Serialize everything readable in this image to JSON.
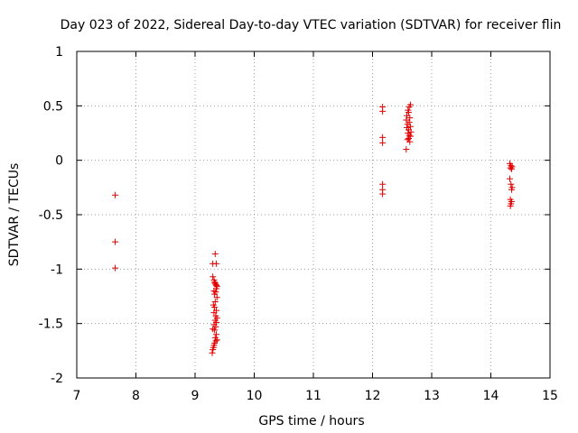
{
  "chart_data": {
    "type": "scatter",
    "title": "Day 023 of 2022, Sidereal Day-to-day VTEC variation (SDTVAR) for receiver flin",
    "xlabel": "GPS time / hours",
    "ylabel": "SDTVAR / TECUs",
    "xlim": [
      7,
      15
    ],
    "ylim": [
      -2,
      1
    ],
    "xticks": [
      "7",
      "8",
      "9",
      "10",
      "11",
      "12",
      "13",
      "14",
      "15"
    ],
    "yticks": [
      "1",
      "0.5",
      "0",
      "-0.5",
      "-1",
      "-1.5",
      "-2"
    ],
    "grid": true,
    "marker": "+",
    "color": "#e00000",
    "points": [
      [
        7.65,
        -0.32
      ],
      [
        7.65,
        -0.75
      ],
      [
        7.65,
        -0.99
      ],
      [
        9.34,
        -0.86
      ],
      [
        9.36,
        -0.95
      ],
      [
        9.3,
        -0.95
      ],
      [
        9.3,
        -1.07
      ],
      [
        9.32,
        -1.1
      ],
      [
        9.33,
        -1.12
      ],
      [
        9.34,
        -1.13
      ],
      [
        9.35,
        -1.14
      ],
      [
        9.36,
        -1.15
      ],
      [
        9.37,
        -1.16
      ],
      [
        9.36,
        -1.18
      ],
      [
        9.32,
        -1.2
      ],
      [
        9.35,
        -1.21
      ],
      [
        9.33,
        -1.23
      ],
      [
        9.37,
        -1.26
      ],
      [
        9.34,
        -1.3
      ],
      [
        9.31,
        -1.33
      ],
      [
        9.33,
        -1.35
      ],
      [
        9.36,
        -1.38
      ],
      [
        9.32,
        -1.4
      ],
      [
        9.35,
        -1.43
      ],
      [
        9.37,
        -1.45
      ],
      [
        9.34,
        -1.47
      ],
      [
        9.36,
        -1.49
      ],
      [
        9.32,
        -1.51
      ],
      [
        9.35,
        -1.53
      ],
      [
        9.3,
        -1.55
      ],
      [
        9.33,
        -1.56
      ],
      [
        9.36,
        -1.6
      ],
      [
        9.34,
        -1.63
      ],
      [
        9.37,
        -1.65
      ],
      [
        9.35,
        -1.66
      ],
      [
        9.33,
        -1.68
      ],
      [
        9.32,
        -1.7
      ],
      [
        9.31,
        -1.72
      ],
      [
        9.3,
        -1.74
      ],
      [
        9.29,
        -1.77
      ],
      [
        12.17,
        0.49
      ],
      [
        12.17,
        0.45
      ],
      [
        12.17,
        0.21
      ],
      [
        12.17,
        0.16
      ],
      [
        12.17,
        -0.22
      ],
      [
        12.17,
        -0.27
      ],
      [
        12.17,
        -0.31
      ],
      [
        12.64,
        0.51
      ],
      [
        12.62,
        0.49
      ],
      [
        12.6,
        0.46
      ],
      [
        12.61,
        0.44
      ],
      [
        12.58,
        0.41
      ],
      [
        12.63,
        0.39
      ],
      [
        12.57,
        0.37
      ],
      [
        12.62,
        0.35
      ],
      [
        12.59,
        0.33
      ],
      [
        12.64,
        0.31
      ],
      [
        12.58,
        0.3
      ],
      [
        12.61,
        0.28
      ],
      [
        12.65,
        0.26
      ],
      [
        12.6,
        0.25
      ],
      [
        12.62,
        0.23
      ],
      [
        12.64,
        0.22
      ],
      [
        12.61,
        0.2
      ],
      [
        12.59,
        0.19
      ],
      [
        12.63,
        0.17
      ],
      [
        12.57,
        0.1
      ],
      [
        14.32,
        -0.03
      ],
      [
        14.34,
        -0.05
      ],
      [
        14.36,
        -0.06
      ],
      [
        14.33,
        -0.07
      ],
      [
        14.35,
        -0.08
      ],
      [
        14.32,
        -0.17
      ],
      [
        14.34,
        -0.22
      ],
      [
        14.36,
        -0.25
      ],
      [
        14.35,
        -0.27
      ],
      [
        14.33,
        -0.36
      ],
      [
        14.35,
        -0.38
      ],
      [
        14.34,
        -0.4
      ],
      [
        14.33,
        -0.42
      ]
    ]
  }
}
